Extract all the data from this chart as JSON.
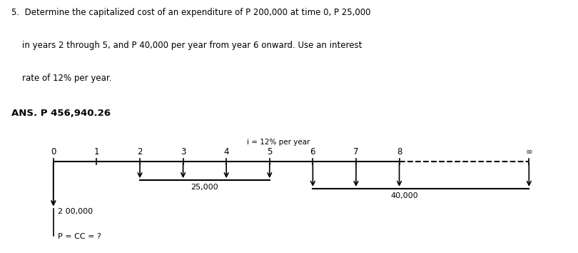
{
  "line1": "5.  Determine the capitalized cost of an expenditure of P 200,000 at time 0, P 25,000",
  "line2": "    in years 2 through 5, and P 40,000 per year from year 6 onward. Use an interest",
  "line3": "    rate of 12% per year.",
  "ans_text": "ANS. P 456,940.26",
  "interest_label": "i = 12% per year",
  "timeline_labels": [
    "0",
    "1",
    "2",
    "3",
    "4",
    "5",
    "6",
    "7",
    "8",
    "∞"
  ],
  "timeline_x": [
    0,
    1,
    2,
    3,
    4,
    5,
    6,
    7,
    8,
    11
  ],
  "pcc_label": "P = CC = ?",
  "label_200k": "2 00,000",
  "label_25k": "25,000",
  "label_40k": "40,000",
  "bg_color": "#ffffff",
  "text_color": "#000000",
  "line_color": "#000000"
}
